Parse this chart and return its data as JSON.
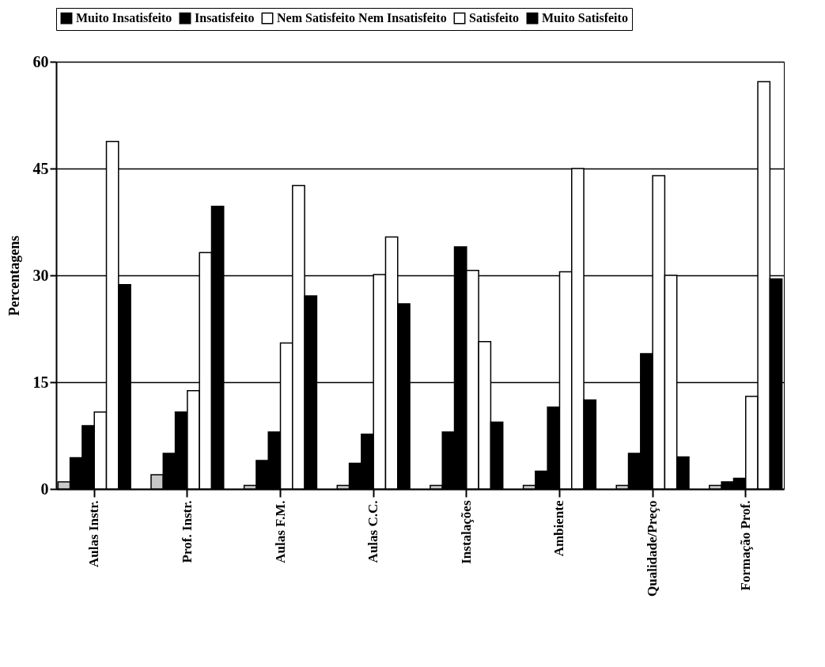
{
  "chart_data": {
    "type": "bar",
    "ylabel": "Percentagens",
    "categories": [
      "Aulas Instr.",
      "Prof. Instr.",
      "Aulas F.M.",
      "Aulas C.C.",
      "Instalações",
      "Ambiente",
      "Qualidade/Preço",
      "Formação Prof."
    ],
    "series": [
      {
        "color": "#c8c8c8",
        "values": [
          1,
          2,
          0.5,
          0.5,
          0.5,
          0.5,
          0.5,
          0.5
        ]
      },
      {
        "name": "Muito Insatisfeito",
        "color": "#000000",
        "values": [
          4.4,
          5,
          4,
          3.6,
          8,
          2.5,
          5,
          1
        ]
      },
      {
        "name": "Insatisfeito",
        "color": "#000000",
        "values": [
          8.9,
          10.8,
          8,
          7.7,
          34,
          11.5,
          19,
          1.5
        ]
      },
      {
        "name": "Nem Satisfeito Nem Insatisfeito",
        "color": "#ffffff",
        "values": [
          10.8,
          13.8,
          20.5,
          30.1,
          30.7,
          30.5,
          44,
          13
        ]
      },
      {
        "name": "Satisfeito",
        "color": "#ffffff",
        "values": [
          48.8,
          33.2,
          42.6,
          35.4,
          20.7,
          45,
          30,
          57.2
        ]
      },
      {
        "name": "Muito Satisfeito",
        "color": "#000000",
        "values": [
          28.7,
          39.7,
          27.1,
          26,
          9.4,
          12.5,
          4.5,
          29.5
        ]
      }
    ],
    "ylim": [
      0,
      60
    ],
    "yticks": [
      0,
      15,
      30,
      45,
      60
    ],
    "grid": "y",
    "legend": "top"
  }
}
